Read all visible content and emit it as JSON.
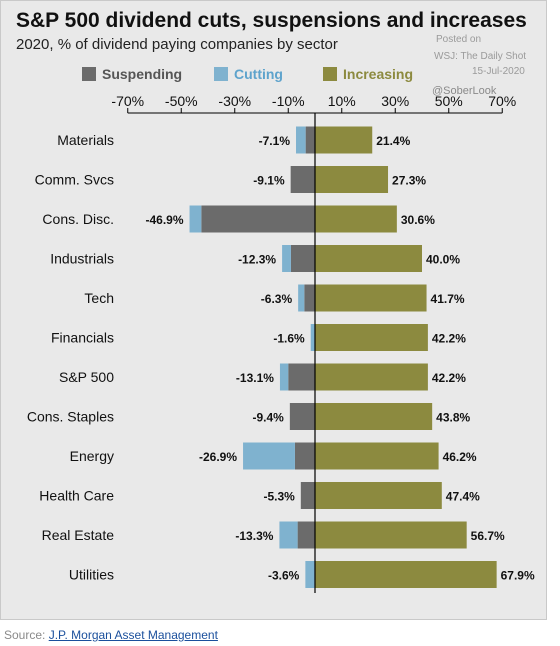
{
  "title": "S&P 500 dividend cuts, suspensions and increases",
  "subtitle": "2020, % of dividend paying companies by sector",
  "watermark": {
    "posted_on": "Posted on",
    "outlet": "WSJ: The Daily Shot",
    "date": "15-Jul-2020",
    "handle": "@SoberLook"
  },
  "legend": {
    "suspending": "Suspending",
    "cutting": "Cutting",
    "increasing": "Increasing"
  },
  "colors": {
    "suspending": "#6b6b6b",
    "cutting": "#7fb2cf",
    "increasing": "#8c8a3f",
    "cutting_text": "#5ea3cc",
    "increasing_text": "#8c8a3f"
  },
  "source": {
    "label": "Source:",
    "link_text": "J.P. Morgan Asset Management"
  },
  "chart_data": {
    "type": "bar",
    "orientation": "horizontal",
    "xlim": [
      -70,
      70
    ],
    "x_ticks": [
      "-70%",
      "-50%",
      "-30%",
      "-10%",
      "10%",
      "30%",
      "50%",
      "70%"
    ],
    "x_tick_values": [
      -70,
      -50,
      -30,
      -10,
      10,
      30,
      50,
      70
    ],
    "categories": [
      "Materials",
      "Comm. Svcs",
      "Cons. Disc.",
      "Industrials",
      "Tech",
      "Financials",
      "S&P 500",
      "Cons. Staples",
      "Energy",
      "Health Care",
      "Real Estate",
      "Utilities"
    ],
    "series": [
      {
        "name": "Suspending",
        "values": [
          -3.5,
          -9.1,
          -42.5,
          -9.0,
          -4.0,
          0,
          -10.0,
          -9.4,
          -7.5,
          -5.3,
          -6.5,
          0
        ]
      },
      {
        "name": "Cutting",
        "values": [
          -3.6,
          0,
          -4.4,
          -3.3,
          -2.3,
          -1.6,
          -3.1,
          0,
          -19.4,
          0,
          -6.8,
          -3.6
        ]
      },
      {
        "name": "Increasing",
        "values": [
          21.4,
          27.3,
          30.6,
          40.0,
          41.7,
          42.2,
          42.2,
          43.8,
          46.2,
          47.4,
          56.7,
          67.9
        ]
      }
    ],
    "total_cut_labels": [
      "-7.1%",
      "-9.1%",
      "-46.9%",
      "-12.3%",
      "-6.3%",
      "-1.6%",
      "-13.1%",
      "-9.4%",
      "-26.9%",
      "-5.3%",
      "-13.3%",
      "-3.6%"
    ],
    "increase_labels": [
      "21.4%",
      "27.3%",
      "30.6%",
      "40.0%",
      "41.7%",
      "42.2%",
      "42.2%",
      "43.8%",
      "46.2%",
      "47.4%",
      "56.7%",
      "67.9%"
    ]
  }
}
